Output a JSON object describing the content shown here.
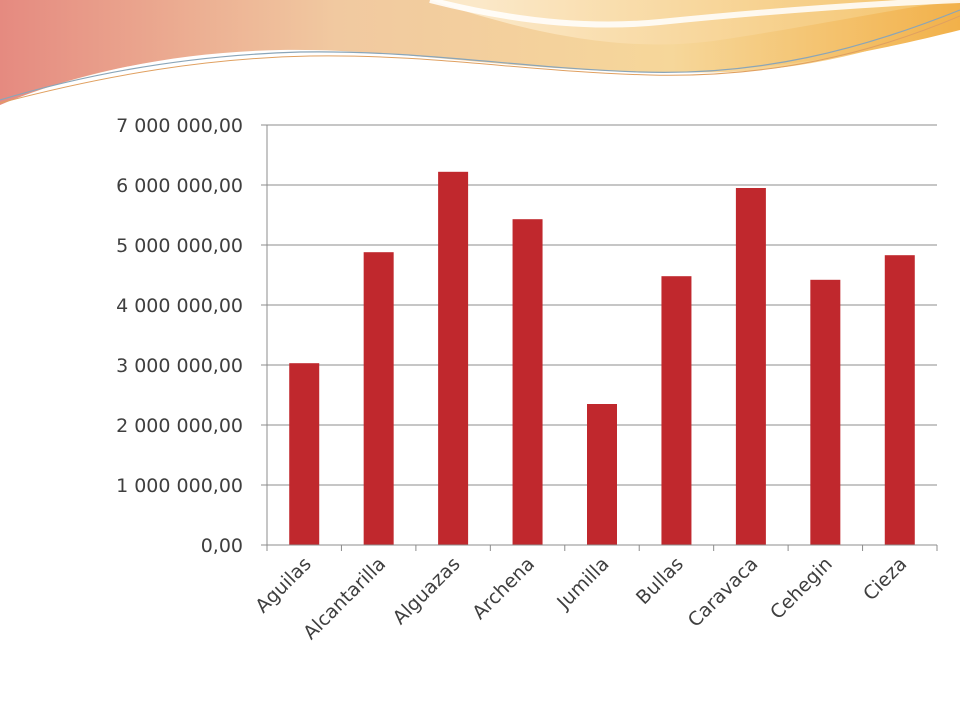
{
  "chart_data": {
    "type": "bar",
    "categories": [
      "Aguilas",
      "Alcantarilla",
      "Alguazas",
      "Archena",
      "Jumilla",
      "Bullas",
      "Caravaca",
      "Cehegin",
      "Cieza"
    ],
    "values": [
      3030000,
      4880000,
      6220000,
      5430000,
      2350000,
      4480000,
      5950000,
      4420000,
      4830000
    ],
    "ylim": [
      0,
      7000000
    ],
    "yticks": [
      0,
      1000000,
      2000000,
      3000000,
      4000000,
      5000000,
      6000000,
      7000000
    ],
    "ytick_labels": [
      "0,00",
      "1 000 000,00",
      "2 000 000,00",
      "3 000 000,00",
      "4 000 000,00",
      "5 000 000,00",
      "6 000 000,00",
      "7 000 000,00"
    ],
    "title": "",
    "xlabel": "",
    "ylabel": "",
    "grid": true,
    "legend": "none",
    "bar_color": "#c0282d"
  },
  "decoration": {
    "header_wave_colors": [
      "#f3d9a2",
      "#e8908a",
      "#f5c14a"
    ]
  }
}
